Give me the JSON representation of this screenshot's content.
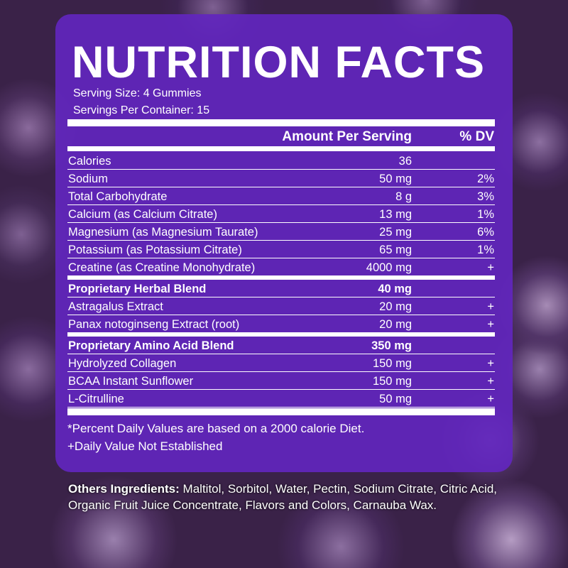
{
  "title": "NUTRITION FACTS",
  "serving_size": "Serving Size: 4 Gummies",
  "servings_per_container": "Servings Per Container: 15",
  "table": {
    "header": {
      "amount": "Amount Per Serving",
      "dv": "% DV"
    },
    "rows": [
      {
        "name": "Calories",
        "amount": "36"
      },
      {
        "name": "Sodium",
        "amount": "50 mg",
        "dv": "2%"
      },
      {
        "name": "Total Carbohydrate",
        "amount": "8 g",
        "dv": "3%"
      },
      {
        "name": "Calcium (as Calcium Citrate)",
        "amount": "13 mg",
        "dv": "1%"
      },
      {
        "name": "Magnesium (as Magnesium Taurate)",
        "amount": "25 mg",
        "dv": "6%"
      },
      {
        "name": "Potassium (as Potassium Citrate)",
        "amount": "65 mg",
        "dv": "1%"
      },
      {
        "name": "Creatine (as Creatine Monohydrate)",
        "amount": "4000 mg",
        "dv": "+"
      },
      {
        "name": "Proprietary Herbal Blend",
        "amount": "40 mg",
        "bold": true
      },
      {
        "name": "Astragalus Extract",
        "amount": "20 mg",
        "dv": "+"
      },
      {
        "name": "Panax notoginseng Extract (root)",
        "amount": "20 mg",
        "dv": "+"
      },
      {
        "name": "Proprietary Amino Acid Blend",
        "amount": "350 mg",
        "bold": true
      },
      {
        "name": "Hydrolyzed Collagen",
        "amount": "150 mg",
        "dv": "+"
      },
      {
        "name": "BCAA Instant Sunflower",
        "amount": "150 mg",
        "dv": "+"
      },
      {
        "name": "L-Citrulline",
        "amount": "50 mg",
        "dv": "+"
      }
    ]
  },
  "footnotes": [
    "*Percent Daily Values are based on a 2000 calorie Diet.",
    "+Daily Value Not Established"
  ],
  "other_ingredients": {
    "label": "Others Ingredients:",
    "text": "Maltitol, Sorbitol, Water, Pectin, Sodium Citrate, Citric Acid, Organic Fruit Juice Concentrate, Flavors and Colors, Carnauba Wax."
  }
}
